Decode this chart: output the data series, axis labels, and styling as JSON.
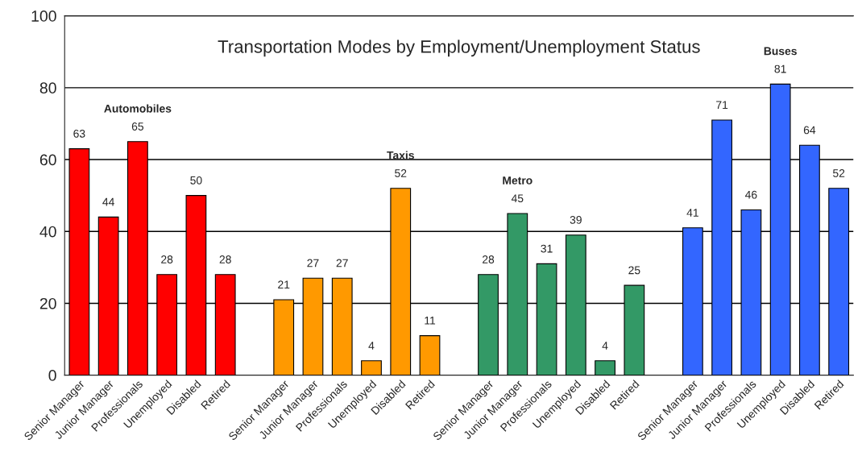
{
  "chart_data": {
    "type": "bar",
    "title": "Transportation Modes by Employment/Unemployment Status",
    "categories": [
      "Senior Manager",
      "Junior Manager",
      "Professionals",
      "Unemployed",
      "Disabled",
      "Retired",
      null,
      "Senior Manager",
      "Junior Manager",
      "Professionals",
      "Unemployed",
      "Disabled",
      "Retired",
      null,
      "Senior Manager",
      "Junior Manager",
      "Professionals",
      "Unemployed",
      "Disabled",
      "Retired",
      null,
      "Senior Manager",
      "Junior Manager",
      "Professionals",
      "Unemployed",
      "Disabled",
      "Retired"
    ],
    "series": [
      {
        "name": "Automobiles",
        "color": "#ff0000",
        "values": [
          63,
          44,
          65,
          28,
          50,
          28,
          null,
          null,
          null,
          null,
          null,
          null,
          null,
          null,
          null,
          null,
          null,
          null,
          null,
          null,
          null,
          null,
          null,
          null,
          null,
          null,
          null
        ]
      },
      {
        "name": "Taxis",
        "color": "#ff9900",
        "values": [
          null,
          null,
          null,
          null,
          null,
          null,
          null,
          21,
          27,
          27,
          4,
          52,
          11,
          null,
          null,
          null,
          null,
          null,
          null,
          null,
          null,
          null,
          null,
          null,
          null,
          null,
          null
        ]
      },
      {
        "name": "Metro",
        "color": "#339966",
        "values": [
          null,
          null,
          null,
          null,
          null,
          null,
          null,
          null,
          null,
          null,
          null,
          null,
          null,
          null,
          28,
          45,
          31,
          39,
          4,
          25,
          null,
          null,
          null,
          null,
          null,
          null,
          null
        ]
      },
      {
        "name": "Buses",
        "color": "#3366ff",
        "values": [
          null,
          null,
          null,
          null,
          null,
          null,
          null,
          null,
          null,
          null,
          null,
          null,
          null,
          null,
          null,
          null,
          null,
          null,
          null,
          null,
          null,
          41,
          71,
          46,
          81,
          64,
          52
        ]
      }
    ],
    "ylim": [
      0,
      100
    ],
    "yticks": [
      0,
      20,
      40,
      60,
      80,
      100
    ],
    "grid": "y",
    "data_labels": true,
    "legend": false
  }
}
